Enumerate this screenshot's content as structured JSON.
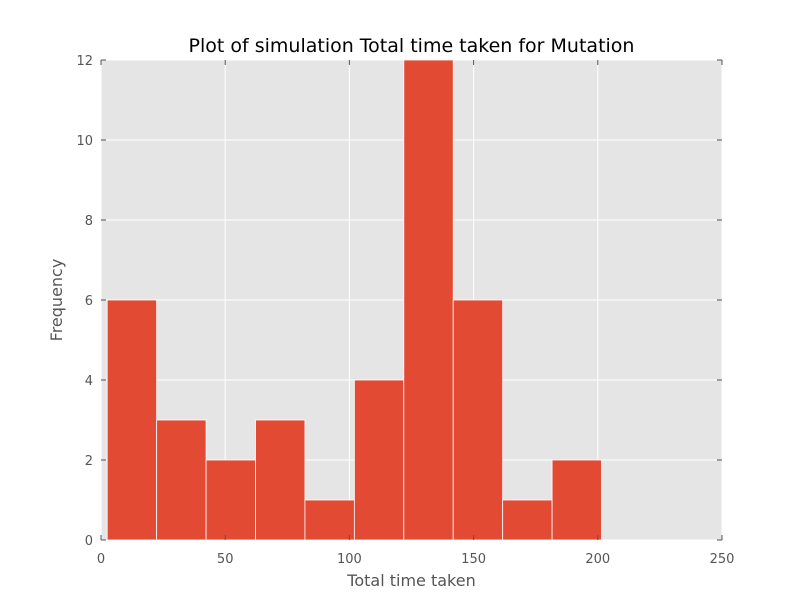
{
  "chart_data": {
    "type": "bar",
    "title": "Plot of simulation Total time taken for Mutation",
    "xlabel": "Total time taken",
    "ylabel": "Frequency",
    "xlim": [
      0,
      250
    ],
    "ylim": [
      0,
      12
    ],
    "xticks": [
      0,
      50,
      100,
      150,
      200,
      250
    ],
    "yticks": [
      0,
      2,
      4,
      6,
      8,
      10,
      12
    ],
    "grid": true,
    "bins": [
      {
        "x0": 2.5,
        "x1": 22.4,
        "value": 6
      },
      {
        "x0": 22.4,
        "x1": 42.3,
        "value": 3
      },
      {
        "x0": 42.3,
        "x1": 62.2,
        "value": 2
      },
      {
        "x0": 62.2,
        "x1": 82.1,
        "value": 3
      },
      {
        "x0": 82.1,
        "x1": 102.0,
        "value": 1
      },
      {
        "x0": 102.0,
        "x1": 121.9,
        "value": 4
      },
      {
        "x0": 121.9,
        "x1": 141.8,
        "value": 12
      },
      {
        "x0": 141.8,
        "x1": 161.7,
        "value": 6
      },
      {
        "x0": 161.7,
        "x1": 181.6,
        "value": 1
      },
      {
        "x0": 181.6,
        "x1": 201.5,
        "value": 2
      }
    ],
    "colors": {
      "bar": "#E24A33",
      "plot_background": "#E5E5E5",
      "grid": "#FFFFFF",
      "tick_text": "#555555"
    }
  }
}
